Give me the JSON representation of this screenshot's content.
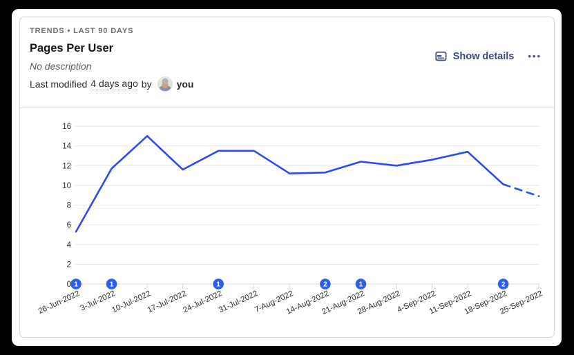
{
  "card": {
    "eyebrow": "TRENDS • LAST 90 DAYS",
    "title": "Pages Per User",
    "description": "No description",
    "modified": {
      "prefix": "Last modified",
      "time": "4 days ago",
      "by": "by",
      "author": "you"
    },
    "actions": {
      "show_details": "Show details",
      "more": "•••"
    }
  },
  "colors": {
    "line": "#2b4bf0",
    "badge": "#2d5ef0",
    "accent_text": "#3b4a7c",
    "gridline": "#e5e5e5",
    "axis_line": "#d9d9d9"
  },
  "chart_data": {
    "type": "line",
    "title": "Pages Per User",
    "xlabel": "",
    "ylabel": "",
    "x": [
      "26-Jun-2022",
      "3-Jul-2022",
      "10-Jul-2022",
      "17-Jul-2022",
      "24-Jul-2022",
      "31-Jul-2022",
      "7-Aug-2022",
      "14-Aug-2022",
      "21-Aug-2022",
      "28-Aug-2022",
      "4-Sep-2022",
      "11-Sep-2022",
      "18-Sep-2022",
      "25-Sep-2022"
    ],
    "series": [
      {
        "name": "Pages Per User",
        "values": [
          5.3,
          11.7,
          15.0,
          11.6,
          13.5,
          13.5,
          11.2,
          11.3,
          12.4,
          12.0,
          12.6,
          13.4,
          10.1,
          8.9
        ],
        "dashed_from_index": 12
      }
    ],
    "ylim": [
      0,
      16
    ],
    "yticks": [
      0,
      2,
      4,
      6,
      8,
      10,
      12,
      14,
      16
    ],
    "grid": "horizontal",
    "legend_position": "none",
    "annotations": [
      {
        "index": 0,
        "date": "26-Jun-2022",
        "count": 1
      },
      {
        "index": 1,
        "date": "3-Jul-2022",
        "count": 1
      },
      {
        "index": 4,
        "date": "24-Jul-2022",
        "count": 1
      },
      {
        "index": 7,
        "date": "14-Aug-2022",
        "count": 2
      },
      {
        "index": 8,
        "date": "21-Aug-2022",
        "count": 1
      },
      {
        "index": 12,
        "date": "18-Sep-2022",
        "count": 2
      }
    ]
  }
}
